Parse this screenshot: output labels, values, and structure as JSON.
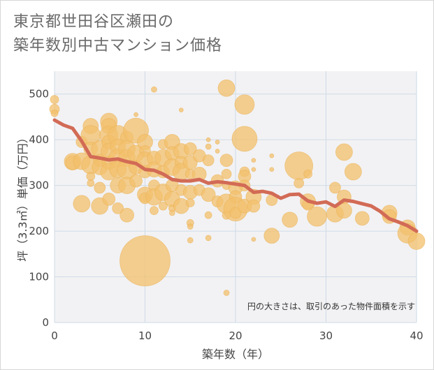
{
  "title_lines": [
    "東京都世田谷区瀬田の",
    "築年数別中古マンション価格"
  ],
  "colors": {
    "bubble": "#f3c06c",
    "bubble_stroke": "#eab155",
    "line": "#d26b56",
    "grid": "#cfdbe6",
    "plot_bg": "#f2f2f4"
  },
  "chart_data": {
    "type": "scatter",
    "xlabel": "築年数（年）",
    "ylabel": "坪（3.3㎡）単価（万円）",
    "xlim": [
      0,
      40
    ],
    "ylim": [
      0,
      550
    ],
    "x_ticks": [
      0,
      10,
      20,
      30,
      40
    ],
    "y_ticks": [
      0,
      100,
      200,
      300,
      400,
      500
    ],
    "grid": true,
    "note": "円の大きさは、取引のあった物件面積を示す",
    "trend_line": {
      "x": [
        0,
        1,
        2,
        3,
        4,
        5,
        6,
        7,
        8,
        9,
        10,
        11,
        12,
        13,
        14,
        15,
        16,
        17,
        18,
        19,
        20,
        21,
        22,
        23,
        24,
        25,
        26,
        27,
        28,
        29,
        30,
        31,
        32,
        33,
        34,
        35,
        36,
        37,
        38,
        39,
        40
      ],
      "y": [
        443,
        432,
        425,
        397,
        363,
        360,
        356,
        358,
        352,
        348,
        335,
        333,
        325,
        313,
        310,
        310,
        313,
        305,
        308,
        306,
        303,
        300,
        285,
        287,
        283,
        272,
        280,
        281,
        266,
        261,
        264,
        254,
        268,
        265,
        260,
        255,
        243,
        227,
        220,
        212,
        200
      ]
    },
    "bubbles": [
      {
        "x": 0,
        "y": 488,
        "s": 6
      },
      {
        "x": 0,
        "y": 467,
        "s": 7
      },
      {
        "x": 0,
        "y": 458,
        "s": 5
      },
      {
        "x": 2,
        "y": 352,
        "s": 12
      },
      {
        "x": 2,
        "y": 350,
        "s": 10
      },
      {
        "x": 3,
        "y": 353,
        "s": 12
      },
      {
        "x": 3,
        "y": 260,
        "s": 12
      },
      {
        "x": 3,
        "y": 395,
        "s": 8
      },
      {
        "x": 4,
        "y": 430,
        "s": 11
      },
      {
        "x": 4,
        "y": 410,
        "s": 14
      },
      {
        "x": 4,
        "y": 380,
        "s": 10
      },
      {
        "x": 4,
        "y": 345,
        "s": 13
      },
      {
        "x": 4,
        "y": 320,
        "s": 6
      },
      {
        "x": 4,
        "y": 305,
        "s": 5
      },
      {
        "x": 5,
        "y": 380,
        "s": 12
      },
      {
        "x": 5,
        "y": 355,
        "s": 9
      },
      {
        "x": 5,
        "y": 340,
        "s": 11
      },
      {
        "x": 5,
        "y": 295,
        "s": 8
      },
      {
        "x": 5,
        "y": 255,
        "s": 12
      },
      {
        "x": 6,
        "y": 440,
        "s": 12
      },
      {
        "x": 6,
        "y": 430,
        "s": 11
      },
      {
        "x": 6,
        "y": 410,
        "s": 13
      },
      {
        "x": 6,
        "y": 395,
        "s": 10
      },
      {
        "x": 6,
        "y": 375,
        "s": 11
      },
      {
        "x": 6,
        "y": 350,
        "s": 10
      },
      {
        "x": 6,
        "y": 330,
        "s": 12
      },
      {
        "x": 6,
        "y": 270,
        "s": 9
      },
      {
        "x": 7,
        "y": 410,
        "s": 14
      },
      {
        "x": 7,
        "y": 385,
        "s": 11
      },
      {
        "x": 7,
        "y": 360,
        "s": 13
      },
      {
        "x": 7,
        "y": 335,
        "s": 12
      },
      {
        "x": 7,
        "y": 300,
        "s": 11
      },
      {
        "x": 7,
        "y": 250,
        "s": 8
      },
      {
        "x": 8,
        "y": 405,
        "s": 9
      },
      {
        "x": 8,
        "y": 380,
        "s": 12
      },
      {
        "x": 8,
        "y": 360,
        "s": 12
      },
      {
        "x": 8,
        "y": 335,
        "s": 14
      },
      {
        "x": 8,
        "y": 300,
        "s": 12
      },
      {
        "x": 8,
        "y": 235,
        "s": 10
      },
      {
        "x": 9,
        "y": 455,
        "s": 3
      },
      {
        "x": 9,
        "y": 420,
        "s": 18
      },
      {
        "x": 9,
        "y": 370,
        "s": 12
      },
      {
        "x": 9,
        "y": 340,
        "s": 10
      },
      {
        "x": 9,
        "y": 310,
        "s": 9
      },
      {
        "x": 10,
        "y": 135,
        "s": 36
      },
      {
        "x": 10,
        "y": 395,
        "s": 11
      },
      {
        "x": 10,
        "y": 375,
        "s": 8
      },
      {
        "x": 10,
        "y": 355,
        "s": 12
      },
      {
        "x": 10,
        "y": 330,
        "s": 9
      },
      {
        "x": 10,
        "y": 280,
        "s": 11
      },
      {
        "x": 10,
        "y": 272,
        "s": 8
      },
      {
        "x": 11,
        "y": 510,
        "s": 4
      },
      {
        "x": 11,
        "y": 360,
        "s": 10
      },
      {
        "x": 11,
        "y": 335,
        "s": 11
      },
      {
        "x": 11,
        "y": 300,
        "s": 8
      },
      {
        "x": 11,
        "y": 275,
        "s": 12
      },
      {
        "x": 11,
        "y": 245,
        "s": 6
      },
      {
        "x": 12,
        "y": 390,
        "s": 7
      },
      {
        "x": 12,
        "y": 360,
        "s": 12
      },
      {
        "x": 12,
        "y": 330,
        "s": 9
      },
      {
        "x": 12,
        "y": 285,
        "s": 12
      },
      {
        "x": 12,
        "y": 255,
        "s": 6
      },
      {
        "x": 13,
        "y": 395,
        "s": 11
      },
      {
        "x": 13,
        "y": 370,
        "s": 10
      },
      {
        "x": 13,
        "y": 340,
        "s": 12
      },
      {
        "x": 13,
        "y": 300,
        "s": 9
      },
      {
        "x": 13,
        "y": 270,
        "s": 11
      },
      {
        "x": 13,
        "y": 250,
        "s": 5
      },
      {
        "x": 13,
        "y": 240,
        "s": 4
      },
      {
        "x": 14,
        "y": 465,
        "s": 3
      },
      {
        "x": 14,
        "y": 375,
        "s": 11
      },
      {
        "x": 14,
        "y": 350,
        "s": 9
      },
      {
        "x": 14,
        "y": 330,
        "s": 12
      },
      {
        "x": 14,
        "y": 290,
        "s": 8
      },
      {
        "x": 14,
        "y": 255,
        "s": 11
      },
      {
        "x": 15,
        "y": 380,
        "s": 9
      },
      {
        "x": 15,
        "y": 350,
        "s": 10
      },
      {
        "x": 15,
        "y": 325,
        "s": 7
      },
      {
        "x": 15,
        "y": 285,
        "s": 10
      },
      {
        "x": 15,
        "y": 262,
        "s": 6
      },
      {
        "x": 15,
        "y": 218,
        "s": 5
      },
      {
        "x": 15,
        "y": 210,
        "s": 4
      },
      {
        "x": 15,
        "y": 180,
        "s": 4
      },
      {
        "x": 16,
        "y": 365,
        "s": 9
      },
      {
        "x": 16,
        "y": 325,
        "s": 10
      },
      {
        "x": 16,
        "y": 290,
        "s": 8
      },
      {
        "x": 17,
        "y": 400,
        "s": 3
      },
      {
        "x": 17,
        "y": 385,
        "s": 4
      },
      {
        "x": 17,
        "y": 355,
        "s": 8
      },
      {
        "x": 17,
        "y": 280,
        "s": 10
      },
      {
        "x": 17,
        "y": 235,
        "s": 5
      },
      {
        "x": 17,
        "y": 185,
        "s": 4
      },
      {
        "x": 18,
        "y": 395,
        "s": 3
      },
      {
        "x": 18,
        "y": 375,
        "s": 3
      },
      {
        "x": 18,
        "y": 310,
        "s": 9
      },
      {
        "x": 18,
        "y": 265,
        "s": 8
      },
      {
        "x": 19,
        "y": 513,
        "s": 12
      },
      {
        "x": 19,
        "y": 355,
        "s": 9
      },
      {
        "x": 19,
        "y": 325,
        "s": 7
      },
      {
        "x": 19,
        "y": 300,
        "s": 6
      },
      {
        "x": 19,
        "y": 260,
        "s": 14
      },
      {
        "x": 19,
        "y": 235,
        "s": 6
      },
      {
        "x": 19,
        "y": 65,
        "s": 4
      },
      {
        "x": 20,
        "y": 295,
        "s": 10
      },
      {
        "x": 20,
        "y": 275,
        "s": 9
      },
      {
        "x": 20,
        "y": 248,
        "s": 17
      },
      {
        "x": 20,
        "y": 240,
        "s": 8
      },
      {
        "x": 21,
        "y": 477,
        "s": 14
      },
      {
        "x": 21,
        "y": 402,
        "s": 18
      },
      {
        "x": 21,
        "y": 330,
        "s": 7
      },
      {
        "x": 21,
        "y": 320,
        "s": 9
      },
      {
        "x": 21,
        "y": 300,
        "s": 8
      },
      {
        "x": 21,
        "y": 255,
        "s": 10
      },
      {
        "x": 22,
        "y": 355,
        "s": 3
      },
      {
        "x": 22,
        "y": 335,
        "s": 3
      },
      {
        "x": 22,
        "y": 275,
        "s": 11
      },
      {
        "x": 22,
        "y": 255,
        "s": 9
      },
      {
        "x": 22,
        "y": 182,
        "s": 3
      },
      {
        "x": 24,
        "y": 365,
        "s": 3
      },
      {
        "x": 24,
        "y": 335,
        "s": 3
      },
      {
        "x": 24,
        "y": 268,
        "s": 8
      },
      {
        "x": 24,
        "y": 190,
        "s": 11
      },
      {
        "x": 26,
        "y": 225,
        "s": 11
      },
      {
        "x": 27,
        "y": 343,
        "s": 20
      },
      {
        "x": 27,
        "y": 305,
        "s": 7
      },
      {
        "x": 28,
        "y": 325,
        "s": 6
      },
      {
        "x": 28,
        "y": 265,
        "s": 11
      },
      {
        "x": 28,
        "y": 258,
        "s": 8
      },
      {
        "x": 29,
        "y": 232,
        "s": 14
      },
      {
        "x": 31,
        "y": 295,
        "s": 8
      },
      {
        "x": 31,
        "y": 238,
        "s": 12
      },
      {
        "x": 32,
        "y": 373,
        "s": 12
      },
      {
        "x": 32,
        "y": 275,
        "s": 10
      },
      {
        "x": 32,
        "y": 245,
        "s": 11
      },
      {
        "x": 33,
        "y": 330,
        "s": 12
      },
      {
        "x": 34,
        "y": 228,
        "s": 10
      },
      {
        "x": 37,
        "y": 240,
        "s": 11
      },
      {
        "x": 37,
        "y": 232,
        "s": 10
      },
      {
        "x": 39,
        "y": 208,
        "s": 11
      },
      {
        "x": 39,
        "y": 195,
        "s": 14
      },
      {
        "x": 40,
        "y": 178,
        "s": 12
      }
    ]
  }
}
